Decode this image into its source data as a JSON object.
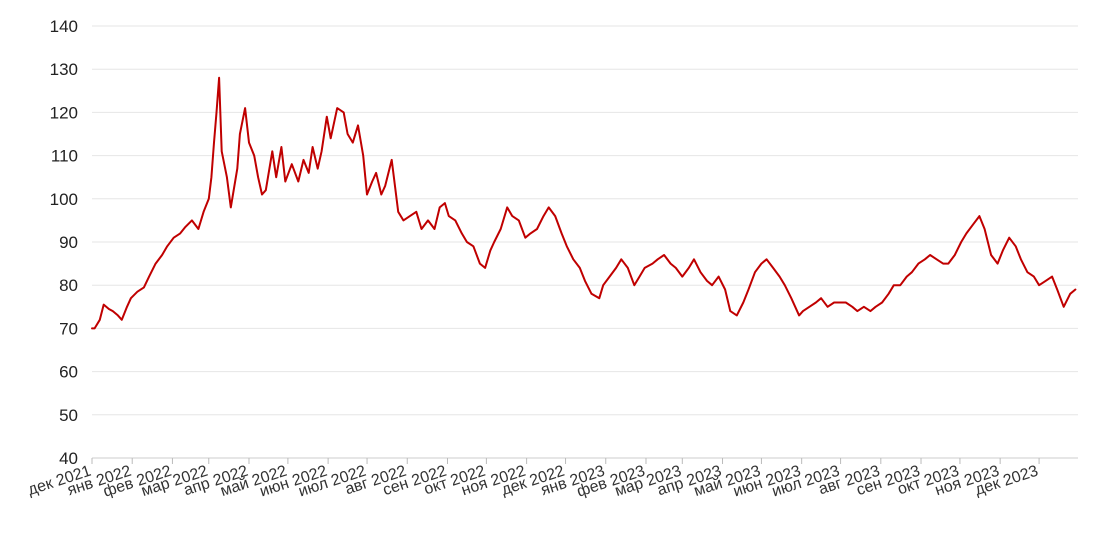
{
  "chart_data": {
    "type": "line",
    "title": "",
    "xlabel": "",
    "ylabel": "",
    "ylim": [
      40,
      140
    ],
    "xlim": [
      "2021-12-01",
      "2023-12-31"
    ],
    "yticks": [
      "40",
      "50",
      "60",
      "70",
      "80",
      "90",
      "100",
      "110",
      "120",
      "130",
      "140"
    ],
    "xticks": [
      {
        "date": "2021-12-01",
        "label": "дек 2021"
      },
      {
        "date": "2022-01-01",
        "label": "янв 2022"
      },
      {
        "date": "2022-02-01",
        "label": "фев 2022"
      },
      {
        "date": "2022-03-01",
        "label": "мар 2022"
      },
      {
        "date": "2022-04-01",
        "label": "апр 2022"
      },
      {
        "date": "2022-05-01",
        "label": "май 2022"
      },
      {
        "date": "2022-06-01",
        "label": "июн 2022"
      },
      {
        "date": "2022-07-01",
        "label": "июл 2022"
      },
      {
        "date": "2022-08-01",
        "label": "авг 2022"
      },
      {
        "date": "2022-09-01",
        "label": "сен 2022"
      },
      {
        "date": "2022-10-01",
        "label": "окт 2022"
      },
      {
        "date": "2022-11-01",
        "label": "ноя 2022"
      },
      {
        "date": "2022-12-01",
        "label": "дек 2022"
      },
      {
        "date": "2023-01-01",
        "label": "янв 2023"
      },
      {
        "date": "2023-02-01",
        "label": "фев 2023"
      },
      {
        "date": "2023-03-01",
        "label": "мар 2023"
      },
      {
        "date": "2023-04-01",
        "label": "апр 2023"
      },
      {
        "date": "2023-05-01",
        "label": "май 2023"
      },
      {
        "date": "2023-06-01",
        "label": "июн 2023"
      },
      {
        "date": "2023-07-01",
        "label": "июл 2023"
      },
      {
        "date": "2023-08-01",
        "label": "авг 2023"
      },
      {
        "date": "2023-09-01",
        "label": "сен 2023"
      },
      {
        "date": "2023-10-01",
        "label": "окт 2023"
      },
      {
        "date": "2023-11-01",
        "label": "ноя 2023"
      },
      {
        "date": "2023-12-01",
        "label": "дек 2023"
      }
    ],
    "grid": true,
    "legend": "none",
    "series": [
      {
        "color": "#c00000",
        "x": [
          "2021-12-01",
          "2021-12-03",
          "2021-12-07",
          "2021-12-10",
          "2021-12-14",
          "2021-12-17",
          "2021-12-21",
          "2021-12-24",
          "2021-12-28",
          "2021-12-31",
          "2022-01-05",
          "2022-01-10",
          "2022-01-14",
          "2022-01-19",
          "2022-01-24",
          "2022-01-28",
          "2022-02-02",
          "2022-02-07",
          "2022-02-11",
          "2022-02-16",
          "2022-02-21",
          "2022-02-25",
          "2022-03-01",
          "2022-03-03",
          "2022-03-05",
          "2022-03-07",
          "2022-03-08",
          "2022-03-09",
          "2022-03-11",
          "2022-03-15",
          "2022-03-18",
          "2022-03-23",
          "2022-03-25",
          "2022-03-29",
          "2022-04-01",
          "2022-04-05",
          "2022-04-08",
          "2022-04-11",
          "2022-04-14",
          "2022-04-19",
          "2022-04-22",
          "2022-04-26",
          "2022-04-29",
          "2022-05-04",
          "2022-05-09",
          "2022-05-13",
          "2022-05-17",
          "2022-05-20",
          "2022-05-24",
          "2022-05-27",
          "2022-05-31",
          "2022-06-03",
          "2022-06-08",
          "2022-06-13",
          "2022-06-16",
          "2022-06-20",
          "2022-06-24",
          "2022-06-28",
          "2022-07-01",
          "2022-07-05",
          "2022-07-08",
          "2022-07-12",
          "2022-07-15",
          "2022-07-20",
          "2022-07-25",
          "2022-07-29",
          "2022-08-03",
          "2022-08-08",
          "2022-08-12",
          "2022-08-17",
          "2022-08-22",
          "2022-08-26",
          "2022-08-30",
          "2022-09-02",
          "2022-09-07",
          "2022-09-12",
          "2022-09-16",
          "2022-09-21",
          "2022-09-26",
          "2022-09-30",
          "2022-10-04",
          "2022-10-07",
          "2022-10-12",
          "2022-10-17",
          "2022-10-21",
          "2022-10-26",
          "2022-10-31",
          "2022-11-04",
          "2022-11-09",
          "2022-11-14",
          "2022-11-18",
          "2022-11-23",
          "2022-11-28",
          "2022-12-02",
          "2022-12-07",
          "2022-12-12",
          "2022-12-16",
          "2022-12-21",
          "2022-12-27",
          "2022-12-30",
          "2023-01-04",
          "2023-01-09",
          "2023-01-13",
          "2023-01-18",
          "2023-01-23",
          "2023-01-27",
          "2023-01-31",
          "2023-02-06",
          "2023-02-10",
          "2023-02-15",
          "2023-02-20",
          "2023-02-24",
          "2023-03-01",
          "2023-03-06",
          "2023-03-10",
          "2023-03-15",
          "2023-03-20",
          "2023-03-24",
          "2023-03-29",
          "2023-04-03",
          "2023-04-07",
          "2023-04-12",
          "2023-04-17",
          "2023-04-21",
          "2023-04-26",
          "2023-05-01",
          "2023-05-05",
          "2023-05-10",
          "2023-05-15",
          "2023-05-19",
          "2023-05-24",
          "2023-05-30",
          "2023-06-02",
          "2023-06-07",
          "2023-06-12",
          "2023-06-16",
          "2023-06-21",
          "2023-06-26",
          "2023-06-30",
          "2023-07-05",
          "2023-07-10",
          "2023-07-14",
          "2023-07-19",
          "2023-07-24",
          "2023-07-28",
          "2023-08-02",
          "2023-08-07",
          "2023-08-11",
          "2023-08-16",
          "2023-08-21",
          "2023-08-25",
          "2023-08-30",
          "2023-09-04",
          "2023-09-08",
          "2023-09-13",
          "2023-09-18",
          "2023-09-22",
          "2023-09-27",
          "2023-10-02",
          "2023-10-06",
          "2023-10-11",
          "2023-10-16",
          "2023-10-20",
          "2023-10-25",
          "2023-10-30",
          "2023-11-03",
          "2023-11-08",
          "2023-11-13",
          "2023-11-17",
          "2023-11-22",
          "2023-11-27",
          "2023-12-01",
          "2023-12-06",
          "2023-12-11",
          "2023-12-15",
          "2023-12-20",
          "2023-12-25",
          "2023-12-29"
        ],
        "values": [
          70,
          70,
          72,
          75.5,
          74.5,
          74,
          73,
          72,
          75,
          77,
          78.5,
          79.5,
          82,
          85,
          87,
          89,
          91,
          92,
          93.5,
          95,
          93,
          97,
          100,
          105,
          113,
          120,
          124,
          128,
          111,
          105,
          98,
          107,
          115,
          121,
          113,
          110,
          105,
          101,
          102,
          111,
          105,
          112,
          104,
          108,
          104,
          109,
          106,
          112,
          107,
          111,
          119,
          114,
          121,
          120,
          115,
          113,
          117,
          110,
          101,
          104,
          106,
          101,
          103,
          109,
          97,
          95,
          96,
          97,
          93,
          95,
          93,
          98,
          99,
          96,
          95,
          92,
          90,
          89,
          85,
          84,
          88,
          90,
          93,
          98,
          96,
          95,
          91,
          92,
          93,
          96,
          98,
          96,
          92,
          89,
          86,
          84,
          81,
          78,
          77,
          80,
          82,
          84,
          86,
          84,
          80,
          82,
          84,
          85,
          86,
          87,
          85,
          84,
          82,
          84,
          86,
          83,
          81,
          80,
          82,
          79,
          74,
          73,
          76,
          79,
          83,
          85,
          86,
          84,
          82,
          80,
          77,
          73,
          74,
          75,
          76,
          77,
          75,
          76,
          76,
          76,
          75,
          74,
          75,
          74,
          75,
          76,
          78,
          80,
          80,
          82,
          83,
          85,
          86,
          87,
          86,
          85,
          85,
          87,
          90,
          92,
          94,
          96,
          93,
          87,
          85,
          88,
          91,
          89,
          86,
          83,
          82,
          80,
          81,
          82,
          79,
          75,
          78,
          79
        ]
      }
    ]
  }
}
